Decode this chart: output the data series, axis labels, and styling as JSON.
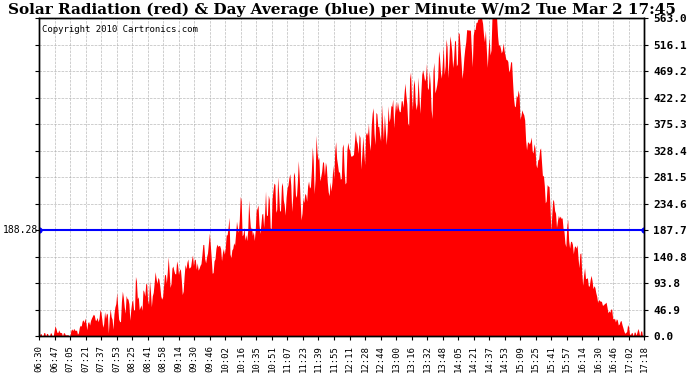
{
  "title": "Solar Radiation (red) & Day Average (blue) per Minute W/m2 Tue Mar 2 17:45",
  "copyright": "Copyright 2010 Cartronics.com",
  "avg_value": 188.28,
  "ymax": 563.0,
  "ymin": 0.0,
  "yticks": [
    0.0,
    46.9,
    93.8,
    140.8,
    187.7,
    234.6,
    281.5,
    328.4,
    375.3,
    422.2,
    469.2,
    516.1,
    563.0
  ],
  "ytick_labels_right": [
    "0.0",
    "46.9",
    "93.8",
    "140.8",
    "187.7",
    "234.6",
    "281.5",
    "328.4",
    "375.3",
    "422.2",
    "469.2",
    "516.1",
    "563.0"
  ],
  "xtick_labels": [
    "06:30",
    "06:47",
    "07:05",
    "07:21",
    "07:37",
    "07:53",
    "08:25",
    "08:41",
    "08:58",
    "09:14",
    "09:30",
    "09:46",
    "10:02",
    "10:16",
    "10:35",
    "10:51",
    "11:07",
    "11:23",
    "11:39",
    "11:55",
    "12:11",
    "12:28",
    "12:44",
    "13:00",
    "13:16",
    "13:32",
    "13:48",
    "14:05",
    "14:21",
    "14:37",
    "14:53",
    "15:09",
    "15:25",
    "15:41",
    "15:57",
    "16:14",
    "16:30",
    "16:46",
    "17:02",
    "17:18"
  ],
  "background_color": "#ffffff",
  "fill_color": "#ff0000",
  "line_color": "#0000ff",
  "grid_color": "#aaaaaa",
  "title_fontsize": 11,
  "peak_value": 563.0,
  "n_points": 648
}
